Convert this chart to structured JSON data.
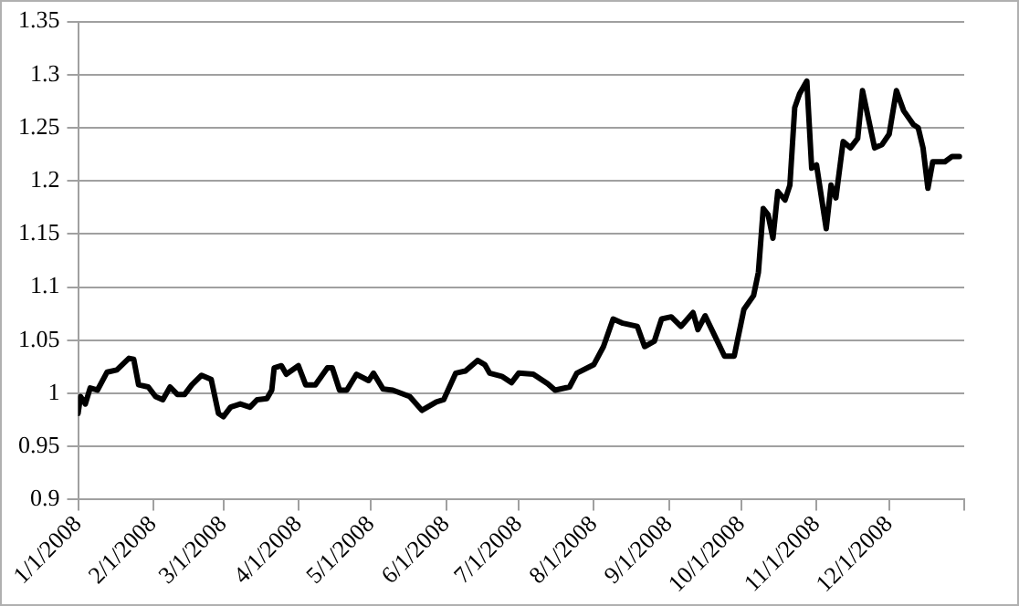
{
  "chart_data": {
    "type": "line",
    "color": "#000000",
    "grid": "y",
    "legend": false,
    "marker": "none",
    "line_style": "solid",
    "x": [
      "2008-01-01",
      "2008-01-02",
      "2008-01-04",
      "2008-01-06",
      "2008-01-09",
      "2008-01-13",
      "2008-01-17",
      "2008-01-22",
      "2008-01-24",
      "2008-01-26",
      "2008-01-30",
      "2008-02-02",
      "2008-02-05",
      "2008-02-08",
      "2008-02-11",
      "2008-02-14",
      "2008-02-17",
      "2008-02-21",
      "2008-02-25",
      "2008-02-28",
      "2008-03-01",
      "2008-03-04",
      "2008-03-08",
      "2008-03-12",
      "2008-03-15",
      "2008-03-19",
      "2008-03-21",
      "2008-03-22",
      "2008-03-25",
      "2008-03-27",
      "2008-04-01",
      "2008-04-04",
      "2008-04-08",
      "2008-04-13",
      "2008-04-15",
      "2008-04-18",
      "2008-04-21",
      "2008-04-25",
      "2008-04-30",
      "2008-05-02",
      "2008-05-06",
      "2008-05-10",
      "2008-05-17",
      "2008-05-22",
      "2008-05-28",
      "2008-05-31",
      "2008-06-05",
      "2008-06-09",
      "2008-06-14",
      "2008-06-17",
      "2008-06-19",
      "2008-06-24",
      "2008-06-28",
      "2008-07-01",
      "2008-07-07",
      "2008-07-13",
      "2008-07-16",
      "2008-07-22",
      "2008-07-25",
      "2008-08-01",
      "2008-08-05",
      "2008-08-09",
      "2008-08-13",
      "2008-08-19",
      "2008-08-22",
      "2008-08-26",
      "2008-08-29",
      "2008-09-02",
      "2008-09-06",
      "2008-09-11",
      "2008-09-13",
      "2008-09-16",
      "2008-09-20",
      "2008-09-24",
      "2008-09-28",
      "2008-10-02",
      "2008-10-06",
      "2008-10-08",
      "2008-10-10",
      "2008-10-12",
      "2008-10-14",
      "2008-10-16",
      "2008-10-19",
      "2008-10-21",
      "2008-10-23",
      "2008-10-25",
      "2008-10-28",
      "2008-10-30",
      "2008-11-01",
      "2008-11-05",
      "2008-11-07",
      "2008-11-09",
      "2008-11-12",
      "2008-11-15",
      "2008-11-18",
      "2008-11-20",
      "2008-11-25",
      "2008-11-28",
      "2008-12-01",
      "2008-12-04",
      "2008-12-07",
      "2008-12-11",
      "2008-12-13",
      "2008-12-15",
      "2008-12-17",
      "2008-12-19",
      "2008-12-24",
      "2008-12-27",
      "2008-12-30"
    ],
    "values": [
      0.981,
      0.997,
      0.99,
      1.005,
      1.003,
      1.02,
      1.022,
      1.033,
      1.032,
      1.008,
      1.006,
      0.997,
      0.994,
      1.006,
      0.999,
      0.999,
      1.008,
      1.017,
      1.013,
      0.981,
      0.978,
      0.987,
      0.99,
      0.987,
      0.994,
      0.995,
      1.003,
      1.024,
      1.026,
      1.018,
      1.026,
      1.008,
      1.008,
      1.024,
      1.024,
      1.003,
      1.003,
      1.018,
      1.012,
      1.019,
      1.004,
      1.003,
      0.997,
      0.984,
      0.992,
      0.994,
      1.019,
      1.021,
      1.031,
      1.027,
      1.019,
      1.016,
      1.01,
      1.019,
      1.018,
      1.009,
      1.003,
      1.006,
      1.019,
      1.027,
      1.044,
      1.07,
      1.066,
      1.063,
      1.044,
      1.049,
      1.07,
      1.072,
      1.063,
      1.076,
      1.06,
      1.073,
      1.054,
      1.035,
      1.035,
      1.079,
      1.092,
      1.114,
      1.174,
      1.168,
      1.146,
      1.19,
      1.182,
      1.196,
      1.269,
      1.282,
      1.294,
      1.212,
      1.215,
      1.155,
      1.196,
      1.184,
      1.237,
      1.231,
      1.24,
      1.285,
      1.231,
      1.234,
      1.244,
      1.285,
      1.266,
      1.253,
      1.25,
      1.231,
      1.193,
      1.218,
      1.218,
      1.223,
      1.223
    ],
    "xlim": [
      "2008-01-01",
      "2009-01-01"
    ],
    "xticks": [
      {
        "value": "2008-01-01",
        "label": "1/1/2008"
      },
      {
        "value": "2008-02-01",
        "label": "2/1/2008"
      },
      {
        "value": "2008-03-01",
        "label": "3/1/2008"
      },
      {
        "value": "2008-04-01",
        "label": "4/1/2008"
      },
      {
        "value": "2008-05-01",
        "label": "5/1/2008"
      },
      {
        "value": "2008-06-01",
        "label": "6/1/2008"
      },
      {
        "value": "2008-07-01",
        "label": "7/1/2008"
      },
      {
        "value": "2008-08-01",
        "label": "8/1/2008"
      },
      {
        "value": "2008-09-01",
        "label": "9/1/2008"
      },
      {
        "value": "2008-10-01",
        "label": "10/1/2008"
      },
      {
        "value": "2008-11-01",
        "label": "11/1/2008"
      },
      {
        "value": "2008-12-01",
        "label": "12/1/2008"
      },
      {
        "value": "2009-01-01",
        "label": null
      }
    ],
    "ylim": [
      0.9,
      1.35
    ],
    "yticks": [
      0.9,
      0.95,
      1,
      1.05,
      1.1,
      1.15,
      1.2,
      1.25,
      1.3,
      1.35
    ]
  }
}
